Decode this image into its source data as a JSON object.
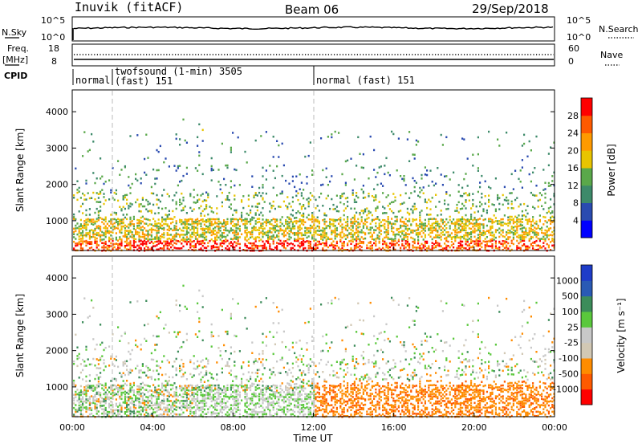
{
  "header": {
    "station": "Inuvik (fitACF)",
    "beam": "Beam 06",
    "date": "29/Sep/2018"
  },
  "noise_panel": {
    "left_label": "N.Sky",
    "right_label": "N.Search",
    "left_ticks": [
      "10^5",
      "10^0"
    ],
    "right_ticks": [
      "10^5",
      "10^0"
    ]
  },
  "freq_panel": {
    "left_label_1": "Freq.",
    "left_label_2": "[MHz]",
    "right_label": "Nave",
    "left_ticks": [
      "18",
      "8"
    ],
    "right_ticks": [
      "60",
      "0"
    ]
  },
  "cpid": {
    "label": "CPID",
    "segments": [
      {
        "start_hour": 0,
        "label": "normal"
      },
      {
        "start_hour": 2,
        "label": "twofsound (1-min) 3505",
        "label2": "(fast) 151"
      },
      {
        "start_hour": 12,
        "label": "normal (fast) 151"
      }
    ]
  },
  "colors": {
    "power_scale": [
      "#0000ff",
      "#2a4bb0",
      "#3d8a6a",
      "#5aa84a",
      "#e8c400",
      "#ff9a00",
      "#ff5a00",
      "#ff0000"
    ],
    "velocity_scale": [
      "#ff0000",
      "#ff5a00",
      "#ff8c00",
      "#d2c8b4",
      "#c8c8c8",
      "#5ac83c",
      "#3c8c5a",
      "#2a5ab4",
      "#1e3cc8"
    ]
  },
  "chart_data": [
    {
      "type": "heatmap",
      "name": "power",
      "ylabel": "Slant Range [km]",
      "yticks": [
        1000,
        2000,
        3000,
        4000
      ],
      "ylim": [
        180,
        4600
      ],
      "xlim": [
        0,
        24
      ],
      "colorbar_label": "Power [dB]",
      "colorbar_ticks": [
        "28",
        "24",
        "20",
        "16",
        "12",
        "8",
        "4"
      ],
      "dashed_lines_hours": [
        2,
        12
      ]
    },
    {
      "type": "heatmap",
      "name": "velocity",
      "ylabel": "Slant Range [km]",
      "yticks": [
        1000,
        2000,
        3000,
        4000
      ],
      "ylim": [
        180,
        4600
      ],
      "xlim": [
        0,
        24
      ],
      "colorbar_label": "Velocity [m s⁻¹]",
      "colorbar_ticks": [
        "1000",
        "500",
        "100",
        "25",
        "-25",
        "-100",
        "-500",
        "-1000"
      ],
      "xticks": [
        "00:00",
        "04:00",
        "08:00",
        "12:00",
        "16:00",
        "20:00",
        "00:00"
      ],
      "xlabel": "Time UT",
      "dashed_lines_hours": [
        2,
        12
      ]
    }
  ]
}
